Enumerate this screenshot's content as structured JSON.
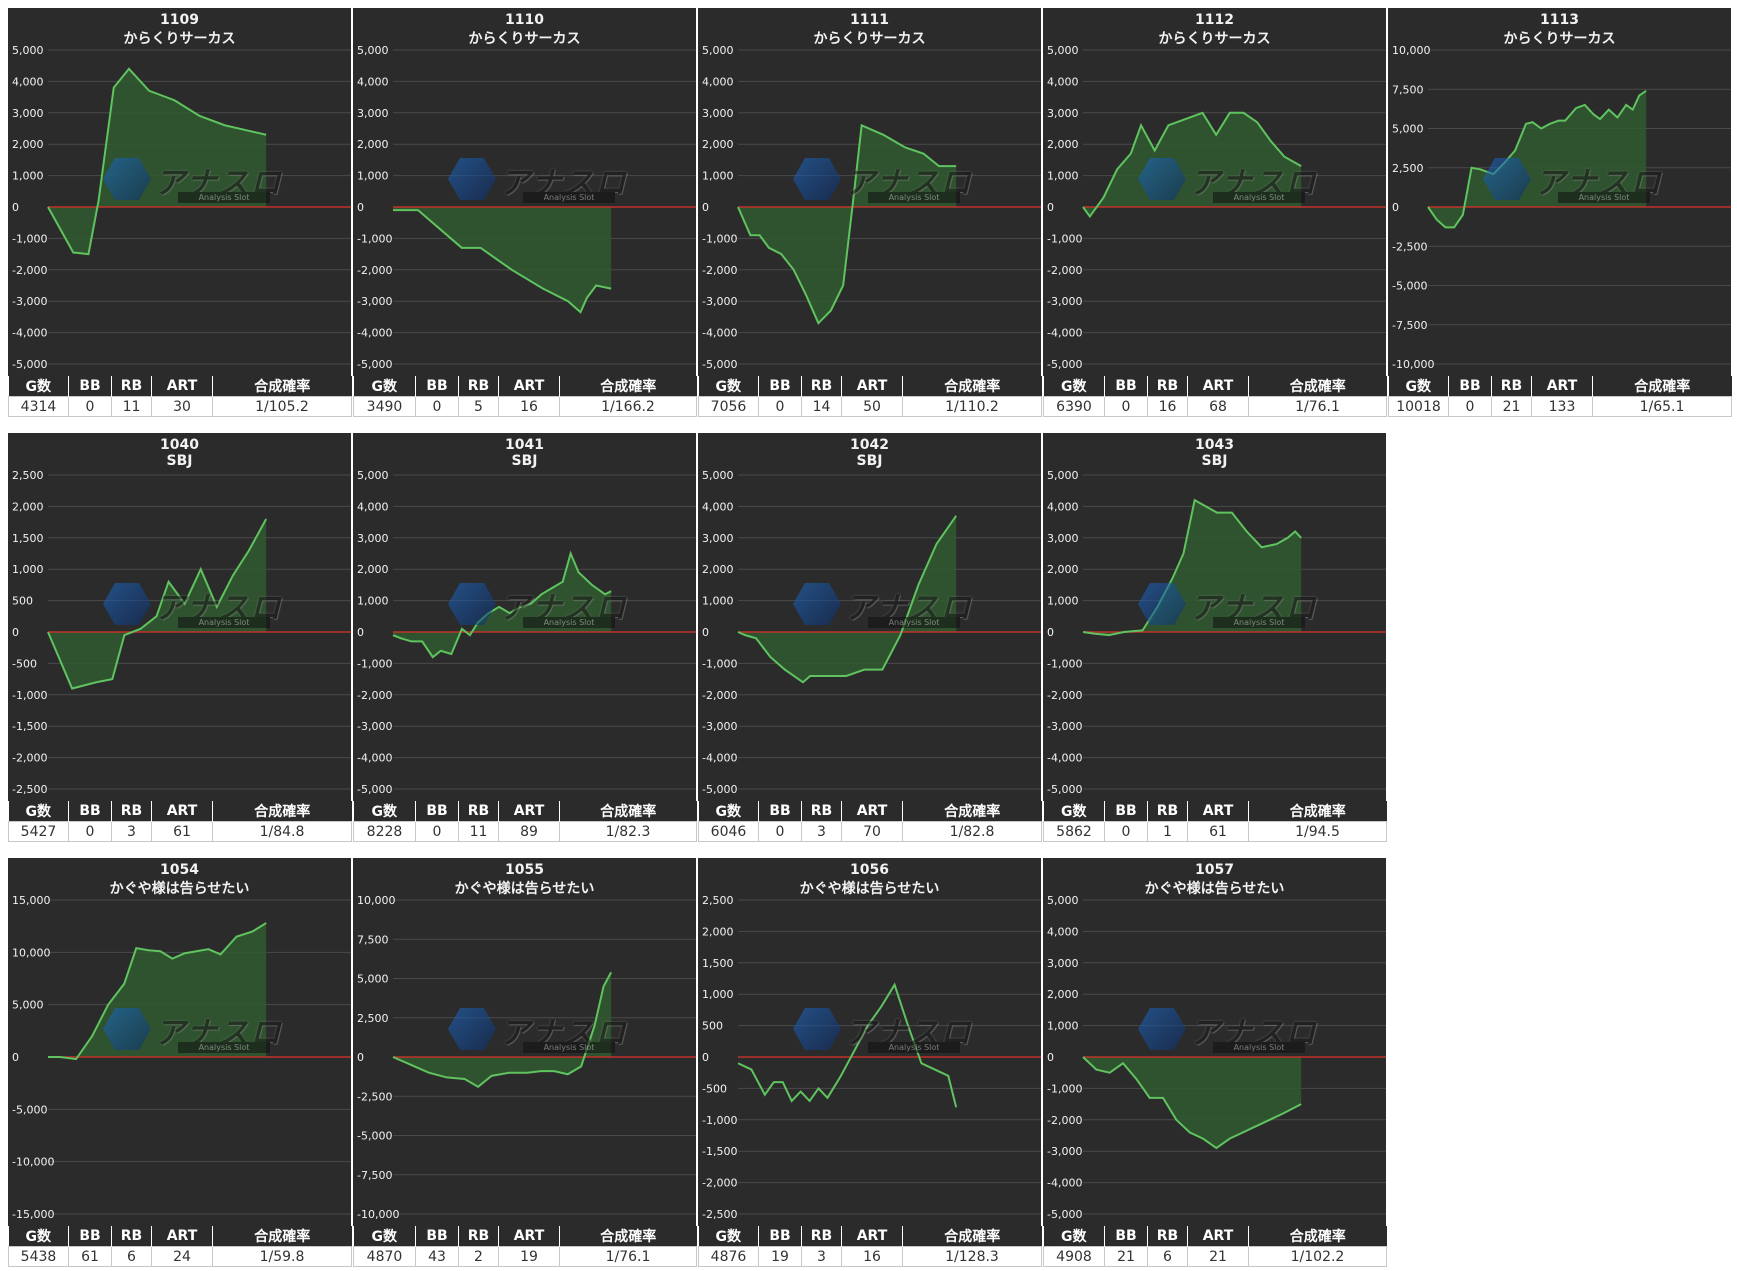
{
  "stat_headers": [
    "G数",
    "BB",
    "RB",
    "ART",
    "合成確率"
  ],
  "watermark": {
    "logo_text": "アナスロ",
    "sub_text": "Analysis Slot"
  },
  "colors": {
    "panel_bg": "#2b2b2b",
    "line": "#5fc35f",
    "fill": "#2f5a2f",
    "zero_line": "#c0322b",
    "grid": "#4a4a4a",
    "text": "#f2f2f2"
  },
  "panels": [
    {
      "machine_no": "1109",
      "machine_name": "からくりサーカス",
      "stats": [
        "4314",
        "0",
        "11",
        "30",
        "1/105.2"
      ],
      "chart_data": {
        "type": "area",
        "ylim": [
          -5000,
          5000
        ],
        "yticks": [
          "-5,000",
          "-4,000",
          "-3,000",
          "-2,000",
          "-1,000",
          "0",
          "1,000",
          "2,000",
          "3,000",
          "4,000",
          "5,000"
        ],
        "x": [
          0,
          500,
          800,
          1000,
          1300,
          1600,
          2000,
          2500,
          3000,
          3500,
          4314
        ],
        "y": [
          0,
          -1450,
          -1500,
          200,
          3800,
          4400,
          3700,
          3400,
          2900,
          2600,
          2300
        ]
      }
    },
    {
      "machine_no": "1110",
      "machine_name": "からくりサーカス",
      "stats": [
        "3490",
        "0",
        "5",
        "16",
        "1/166.2"
      ],
      "chart_data": {
        "type": "area",
        "ylim": [
          -5000,
          5000
        ],
        "yticks": [
          "-5,000",
          "-4,000",
          "-3,000",
          "-2,000",
          "-1,000",
          "0",
          "1,000",
          "2,000",
          "3,000",
          "4,000",
          "5,000"
        ],
        "x": [
          0,
          100,
          400,
          1100,
          1400,
          1900,
          2400,
          2800,
          3000,
          3100,
          3250,
          3490
        ],
        "y": [
          -100,
          -100,
          -100,
          -1300,
          -1300,
          -2000,
          -2600,
          -3000,
          -3350,
          -2900,
          -2500,
          -2600
        ]
      }
    },
    {
      "machine_no": "1111",
      "machine_name": "からくりサーカス",
      "stats": [
        "7056",
        "0",
        "14",
        "50",
        "1/110.2"
      ],
      "chart_data": {
        "type": "area",
        "ylim": [
          -5000,
          5000
        ],
        "yticks": [
          "-5,000",
          "-4,000",
          "-3,000",
          "-2,000",
          "-1,000",
          "0",
          "1,000",
          "2,000",
          "3,000",
          "4,000",
          "5,000"
        ],
        "x": [
          0,
          400,
          700,
          1000,
          1400,
          1800,
          2200,
          2600,
          3000,
          3400,
          3700,
          4000,
          4700,
          5400,
          6000,
          6500,
          7056
        ],
        "y": [
          0,
          -900,
          -900,
          -1300,
          -1500,
          -2000,
          -2800,
          -3700,
          -3300,
          -2500,
          0,
          2600,
          2300,
          1900,
          1700,
          1300,
          1300
        ]
      }
    },
    {
      "machine_no": "1112",
      "machine_name": "からくりサーカス",
      "stats": [
        "6390",
        "0",
        "16",
        "68",
        "1/76.1"
      ],
      "chart_data": {
        "type": "area",
        "ylim": [
          -5000,
          5000
        ],
        "yticks": [
          "-5,000",
          "-4,000",
          "-3,000",
          "-2,000",
          "-1,000",
          "0",
          "1,000",
          "2,000",
          "3,000",
          "4,000",
          "5,000"
        ],
        "x": [
          0,
          200,
          600,
          1000,
          1400,
          1700,
          2100,
          2500,
          3000,
          3500,
          3900,
          4300,
          4700,
          5100,
          5500,
          5900,
          6390
        ],
        "y": [
          0,
          -300,
          300,
          1200,
          1700,
          2600,
          1800,
          2600,
          2800,
          3000,
          2300,
          3000,
          3000,
          2700,
          2100,
          1600,
          1300
        ]
      }
    },
    {
      "machine_no": "1113",
      "machine_name": "からくりサーカス",
      "stats": [
        "10018",
        "0",
        "21",
        "133",
        "1/65.1"
      ],
      "chart_data": {
        "type": "area",
        "ylim": [
          -10000,
          10000
        ],
        "yticks": [
          "-10,000",
          "-7,500",
          "-5,000",
          "-2,500",
          "0",
          "2,500",
          "5,000",
          "7,500",
          "10,000"
        ],
        "x": [
          0,
          400,
          800,
          1200,
          1600,
          2000,
          2400,
          3000,
          3500,
          4000,
          4500,
          4800,
          5200,
          5600,
          6000,
          6300,
          6800,
          7200,
          7600,
          7900,
          8300,
          8700,
          9100,
          9400,
          9700,
          10018
        ],
        "y": [
          0,
          -800,
          -1300,
          -1300,
          -500,
          2500,
          2400,
          2100,
          2800,
          3600,
          5300,
          5400,
          5000,
          5300,
          5500,
          5500,
          6300,
          6500,
          5900,
          5600,
          6200,
          5700,
          6500,
          6200,
          7100,
          7400
        ]
      }
    },
    {
      "machine_no": "1040",
      "machine_name": "SBJ",
      "stats": [
        "5427",
        "0",
        "3",
        "61",
        "1/84.8"
      ],
      "chart_data": {
        "type": "area",
        "ylim": [
          -2500,
          2500
        ],
        "yticks": [
          "-2,500",
          "-2,000",
          "-1,500",
          "-1,000",
          "-500",
          "0",
          "500",
          "1,000",
          "1,500",
          "2,000",
          "2,500"
        ],
        "x": [
          0,
          600,
          1200,
          1600,
          1900,
          2300,
          2700,
          3000,
          3400,
          3800,
          4200,
          4600,
          5000,
          5427
        ],
        "y": [
          0,
          -900,
          -800,
          -750,
          -50,
          50,
          250,
          800,
          450,
          1000,
          400,
          900,
          1300,
          1800
        ]
      }
    },
    {
      "machine_no": "1041",
      "machine_name": "SBJ",
      "stats": [
        "8228",
        "0",
        "11",
        "89",
        "1/82.3"
      ],
      "chart_data": {
        "type": "area",
        "ylim": [
          -5000,
          5000
        ],
        "yticks": [
          "-5,000",
          "-4,000",
          "-3,000",
          "-2,000",
          "-1,000",
          "0",
          "1,000",
          "2,000",
          "3,000",
          "4,000",
          "5,000"
        ],
        "x": [
          0,
          300,
          700,
          1100,
          1500,
          1800,
          2200,
          2600,
          2900,
          3200,
          3600,
          4000,
          4400,
          4800,
          5200,
          5600,
          6000,
          6400,
          6700,
          7000,
          7500,
          8000,
          8228
        ],
        "y": [
          -100,
          -200,
          -300,
          -300,
          -800,
          -600,
          -700,
          100,
          -100,
          300,
          600,
          800,
          600,
          800,
          900,
          1200,
          1400,
          1600,
          2500,
          1900,
          1500,
          1200,
          1300
        ]
      }
    },
    {
      "machine_no": "1042",
      "machine_name": "SBJ",
      "stats": [
        "6046",
        "0",
        "3",
        "70",
        "1/82.8"
      ],
      "chart_data": {
        "type": "area",
        "ylim": [
          -5000,
          5000
        ],
        "yticks": [
          "-5,000",
          "-4,000",
          "-3,000",
          "-2,000",
          "-1,000",
          "0",
          "1,000",
          "2,000",
          "3,000",
          "4,000",
          "5,000"
        ],
        "x": [
          0,
          200,
          500,
          900,
          1300,
          1800,
          2000,
          3000,
          3500,
          4000,
          4500,
          5000,
          5500,
          6046
        ],
        "y": [
          0,
          -100,
          -200,
          -800,
          -1200,
          -1600,
          -1400,
          -1400,
          -1200,
          -1200,
          -100,
          1500,
          2800,
          3700
        ]
      }
    },
    {
      "machine_no": "1043",
      "machine_name": "SBJ",
      "stats": [
        "5862",
        "0",
        "1",
        "61",
        "1/94.5"
      ],
      "chart_data": {
        "type": "area",
        "ylim": [
          -5000,
          5000
        ],
        "yticks": [
          "-5,000",
          "-4,000",
          "-3,000",
          "-2,000",
          "-1,000",
          "0",
          "1,000",
          "2,000",
          "3,000",
          "4,000",
          "5,000"
        ],
        "x": [
          0,
          300,
          700,
          1100,
          1600,
          2000,
          2400,
          2700,
          3000,
          3300,
          3600,
          4000,
          4400,
          4800,
          5200,
          5500,
          5700,
          5862
        ],
        "y": [
          0,
          -50,
          -100,
          0,
          50,
          800,
          1700,
          2500,
          4200,
          4000,
          3800,
          3800,
          3200,
          2700,
          2800,
          3000,
          3200,
          3000
        ]
      }
    },
    {
      "machine_no": "1054",
      "machine_name": "かぐや様は告らせたい",
      "stats": [
        "5438",
        "61",
        "6",
        "24",
        "1/59.8"
      ],
      "chart_data": {
        "type": "area",
        "ylim": [
          -15000,
          15000
        ],
        "yticks": [
          "-15,000",
          "-10,000",
          "-5,000",
          "0",
          "5,000",
          "10,000",
          "15,000"
        ],
        "x": [
          0,
          300,
          700,
          1100,
          1500,
          1900,
          2200,
          2500,
          2800,
          3100,
          3400,
          3700,
          4000,
          4300,
          4700,
          5100,
          5438
        ],
        "y": [
          0,
          0,
          -200,
          2000,
          5000,
          7000,
          10400,
          10200,
          10100,
          9400,
          9900,
          10100,
          10300,
          9800,
          11500,
          12000,
          12800
        ]
      }
    },
    {
      "machine_no": "1055",
      "machine_name": "かぐや様は告らせたい",
      "stats": [
        "4870",
        "43",
        "2",
        "19",
        "1/76.1"
      ],
      "chart_data": {
        "type": "area",
        "ylim": [
          -10000,
          10000
        ],
        "yticks": [
          "-10,000",
          "-7,500",
          "-5,000",
          "-2,500",
          "0",
          "2,500",
          "5,000",
          "7,500",
          "10,000"
        ],
        "x": [
          0,
          400,
          800,
          1200,
          1600,
          1900,
          2200,
          2600,
          3000,
          3300,
          3600,
          3900,
          4200,
          4500,
          4700,
          4870
        ],
        "y": [
          0,
          -500,
          -1000,
          -1300,
          -1400,
          -1900,
          -1200,
          -1000,
          -1000,
          -900,
          -900,
          -1100,
          -600,
          2000,
          4500,
          5400
        ]
      }
    },
    {
      "machine_no": "1056",
      "machine_name": "かぐや様は告らせたい",
      "stats": [
        "4876",
        "19",
        "3",
        "16",
        "1/128.3"
      ],
      "chart_data": {
        "type": "line",
        "ylim": [
          -2500,
          2500
        ],
        "yticks": [
          "-2,500",
          "-2,000",
          "-1,500",
          "-1,000",
          "-500",
          "0",
          "500",
          "1,000",
          "1,500",
          "2,000",
          "2,500"
        ],
        "x": [
          0,
          300,
          600,
          800,
          1000,
          1200,
          1400,
          1600,
          1800,
          2000,
          2300,
          2600,
          2900,
          3200,
          3500,
          3800,
          4100,
          4400,
          4700,
          4876
        ],
        "y": [
          -100,
          -200,
          -600,
          -400,
          -400,
          -700,
          -550,
          -700,
          -500,
          -650,
          -300,
          100,
          500,
          800,
          1150,
          500,
          -100,
          -200,
          -300,
          -800
        ]
      }
    },
    {
      "machine_no": "1057",
      "machine_name": "かぐや様は告らせたい",
      "stats": [
        "4908",
        "21",
        "6",
        "21",
        "1/102.2"
      ],
      "chart_data": {
        "type": "area",
        "ylim": [
          -5000,
          5000
        ],
        "yticks": [
          "-5,000",
          "-4,000",
          "-3,000",
          "-2,000",
          "-1,000",
          "0",
          "1,000",
          "2,000",
          "3,000",
          "4,000",
          "5,000"
        ],
        "x": [
          0,
          300,
          600,
          900,
          1200,
          1500,
          1800,
          2100,
          2400,
          2700,
          3000,
          3300,
          3600,
          3900,
          4200,
          4500,
          4908
        ],
        "y": [
          0,
          -400,
          -500,
          -200,
          -700,
          -1300,
          -1300,
          -2000,
          -2400,
          -2600,
          -2900,
          -2600,
          -2400,
          -2200,
          -2000,
          -1800,
          -1500
        ]
      }
    }
  ]
}
